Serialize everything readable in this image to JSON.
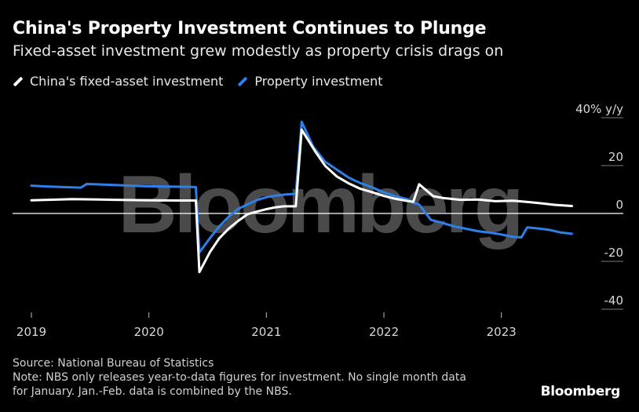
{
  "header": {
    "title": "China's Property Investment Continues to Plunge",
    "subtitle": "Fixed-asset investment grew modestly as property crisis drags on"
  },
  "legend": [
    {
      "label": "China's fixed-asset investment",
      "color": "#ffffff"
    },
    {
      "label": "Property investment",
      "color": "#2f7fe8"
    }
  ],
  "footer": {
    "source": "Source: National Bureau of Statistics",
    "note_line1": "Note: NBS only releases year-to-data figures for investment. No single month data",
    "note_line2": "for January. Jan.-Feb. data is combined by the NBS.",
    "brand": "Bloomberg"
  },
  "watermark": "Bloomberg",
  "chart_data": {
    "type": "line",
    "ylabel": "% y/y",
    "ylim": [
      -40,
      40
    ],
    "yticks": [
      40,
      20,
      0,
      -20,
      -40
    ],
    "ytick_labels": [
      "40% y/y",
      "20",
      "0",
      "-20",
      "-40"
    ],
    "xlim": [
      2019.0,
      2023.65
    ],
    "xticks": [
      2019,
      2020,
      2021,
      2022,
      2023
    ],
    "xtick_labels": [
      "2019",
      "2020",
      "2021",
      "2022",
      "2023"
    ],
    "grid": "horizontal",
    "zero_line": true,
    "series": [
      {
        "name": "China's fixed-asset investment",
        "color": "#ffffff",
        "points": [
          [
            2019.0,
            5.5
          ],
          [
            2019.35,
            6.0
          ],
          [
            2019.7,
            5.7
          ],
          [
            2020.0,
            5.5
          ],
          [
            2020.25,
            5.4
          ],
          [
            2020.4,
            5.4
          ],
          [
            2020.43,
            -24.5
          ],
          [
            2020.52,
            -16.1
          ],
          [
            2020.6,
            -10.3
          ],
          [
            2020.68,
            -6.3
          ],
          [
            2020.76,
            -3.1
          ],
          [
            2020.84,
            -0.3
          ],
          [
            2020.92,
            0.8
          ],
          [
            2021.0,
            1.8
          ],
          [
            2021.08,
            2.6
          ],
          [
            2021.15,
            3.0
          ],
          [
            2021.25,
            3.0
          ],
          [
            2021.3,
            35.0
          ],
          [
            2021.42,
            25.6
          ],
          [
            2021.5,
            19.9
          ],
          [
            2021.6,
            15.4
          ],
          [
            2021.7,
            12.6
          ],
          [
            2021.8,
            10.3
          ],
          [
            2021.9,
            8.9
          ],
          [
            2022.0,
            7.3
          ],
          [
            2022.1,
            6.1
          ],
          [
            2022.2,
            5.2
          ],
          [
            2022.25,
            4.9
          ],
          [
            2022.3,
            12.2
          ],
          [
            2022.42,
            7.2
          ],
          [
            2022.5,
            6.5
          ],
          [
            2022.65,
            5.7
          ],
          [
            2022.8,
            5.8
          ],
          [
            2022.95,
            5.1
          ],
          [
            2023.1,
            5.3
          ],
          [
            2023.25,
            4.7
          ],
          [
            2023.35,
            4.2
          ],
          [
            2023.45,
            3.6
          ],
          [
            2023.6,
            3.1
          ]
        ]
      },
      {
        "name": "Property investment",
        "color": "#2f7fe8",
        "points": [
          [
            2019.0,
            11.6
          ],
          [
            2019.15,
            11.2
          ],
          [
            2019.3,
            11.0
          ],
          [
            2019.42,
            10.8
          ],
          [
            2019.47,
            12.3
          ],
          [
            2019.6,
            12.1
          ],
          [
            2019.75,
            11.8
          ],
          [
            2019.95,
            11.4
          ],
          [
            2020.15,
            11.2
          ],
          [
            2020.35,
            11.1
          ],
          [
            2020.4,
            11.0
          ],
          [
            2020.43,
            -16.3
          ],
          [
            2020.52,
            -10.3
          ],
          [
            2020.6,
            -5.3
          ],
          [
            2020.68,
            -1.3
          ],
          [
            2020.76,
            1.9
          ],
          [
            2020.84,
            3.8
          ],
          [
            2020.92,
            5.6
          ],
          [
            2021.0,
            6.8
          ],
          [
            2021.1,
            7.6
          ],
          [
            2021.18,
            8.0
          ],
          [
            2021.25,
            8.2
          ],
          [
            2021.3,
            38.3
          ],
          [
            2021.4,
            27.8
          ],
          [
            2021.5,
            21.6
          ],
          [
            2021.6,
            18.3
          ],
          [
            2021.7,
            15.0
          ],
          [
            2021.8,
            12.7
          ],
          [
            2021.9,
            10.9
          ],
          [
            2022.0,
            8.8
          ],
          [
            2022.1,
            7.2
          ],
          [
            2022.2,
            5.9
          ],
          [
            2022.25,
            4.4
          ],
          [
            2022.3,
            3.7
          ],
          [
            2022.4,
            -2.7
          ],
          [
            2022.5,
            -4.0
          ],
          [
            2022.6,
            -5.4
          ],
          [
            2022.7,
            -6.4
          ],
          [
            2022.8,
            -7.4
          ],
          [
            2022.9,
            -8.0
          ],
          [
            2023.0,
            -8.8
          ],
          [
            2023.1,
            -9.8
          ],
          [
            2023.17,
            -10.0
          ],
          [
            2023.22,
            -5.8
          ],
          [
            2023.3,
            -6.2
          ],
          [
            2023.4,
            -6.8
          ],
          [
            2023.5,
            -7.9
          ],
          [
            2023.6,
            -8.5
          ]
        ]
      }
    ]
  }
}
